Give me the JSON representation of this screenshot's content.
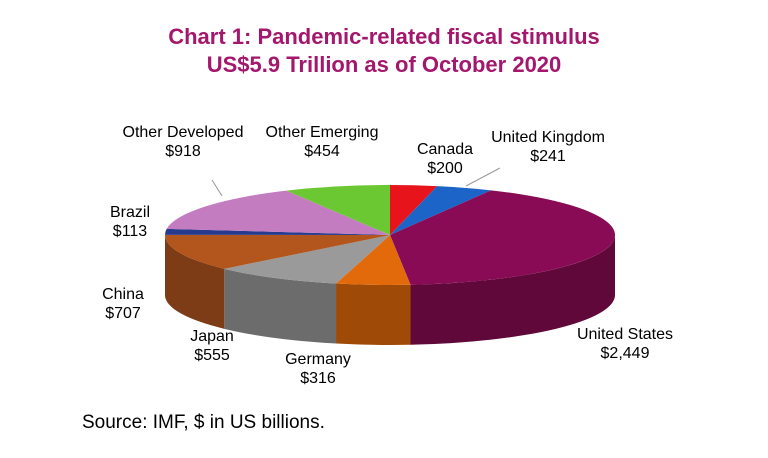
{
  "chart_data": {
    "type": "pie",
    "title": "Chart 1: Pandemic-related fiscal stimulus",
    "subtitle": "US$5.9 Trillion as of October 2020",
    "categories": [
      "Canada",
      "United Kingdom",
      "United States",
      "Germany",
      "Japan",
      "China",
      "Brazil",
      "Other Developed",
      "Other Emerging"
    ],
    "values": [
      200,
      241,
      2449,
      316,
      555,
      707,
      113,
      918,
      454
    ],
    "value_labels": [
      "$200",
      "$241",
      "$2,449",
      "$316",
      "$555",
      "$707",
      "$113",
      "$918",
      "$454"
    ],
    "colors": [
      "#e8141c",
      "#1c64c8",
      "#8a0b55",
      "#e36a0a",
      "#9a9a9a",
      "#b2561e",
      "#263a8e",
      "#c47cc0",
      "#6cc832"
    ],
    "source": "Source: IMF, $ in US billions."
  }
}
